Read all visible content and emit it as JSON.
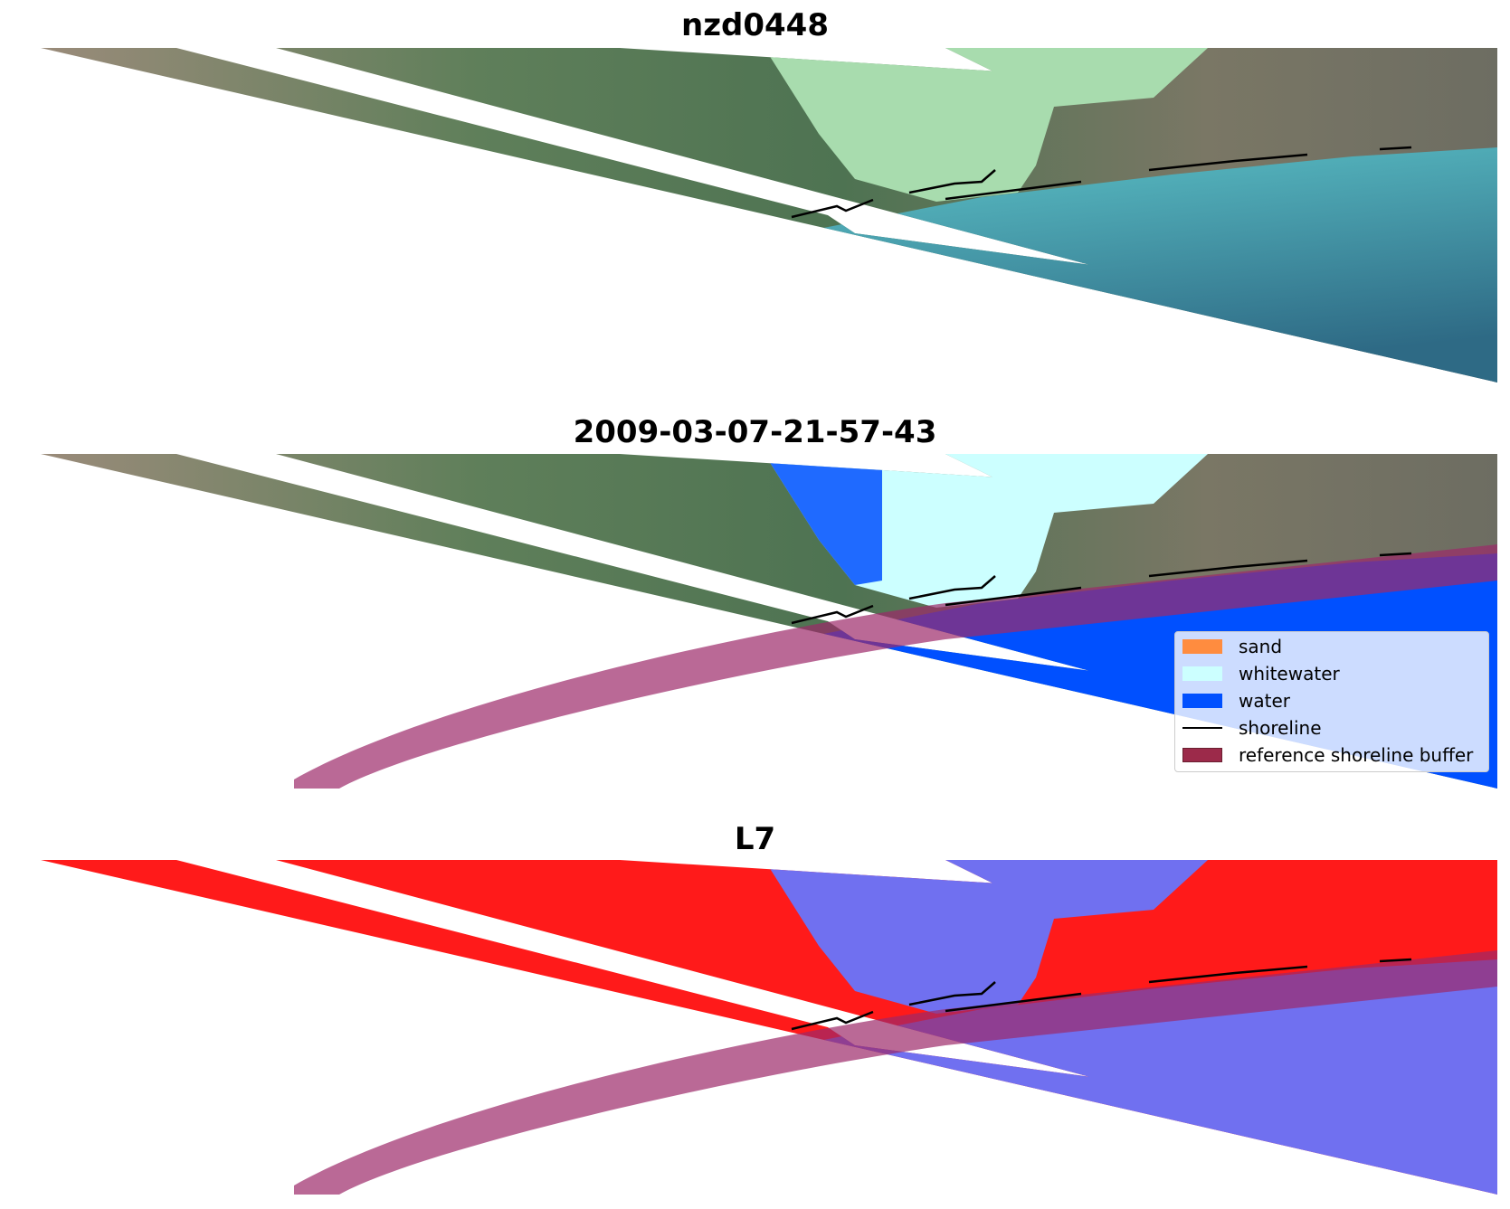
{
  "panels": [
    {
      "title": "nzd0448",
      "kind": "rgb"
    },
    {
      "title": "2009-03-07-21-57-43",
      "kind": "classified"
    },
    {
      "title": "L7",
      "kind": "mndwi"
    }
  ],
  "colors": {
    "sand": "#ff8c3f",
    "whitewater": "#ccffff",
    "water": "#0050ff",
    "shoreline": "#000000",
    "buffer": "#9c2a4a",
    "land_index": "#ff1a1a",
    "water_index": "#7070f0"
  },
  "legend": {
    "items": [
      {
        "label": "sand",
        "type": "patch",
        "color": "#ff8c3f"
      },
      {
        "label": "whitewater",
        "type": "patch",
        "color": "#ccffff"
      },
      {
        "label": "water",
        "type": "patch",
        "color": "#0050ff"
      },
      {
        "label": "shoreline",
        "type": "line",
        "color": "#000000"
      },
      {
        "label": "reference shoreline buffer",
        "type": "patch",
        "color": "#9c2a4a"
      }
    ]
  }
}
